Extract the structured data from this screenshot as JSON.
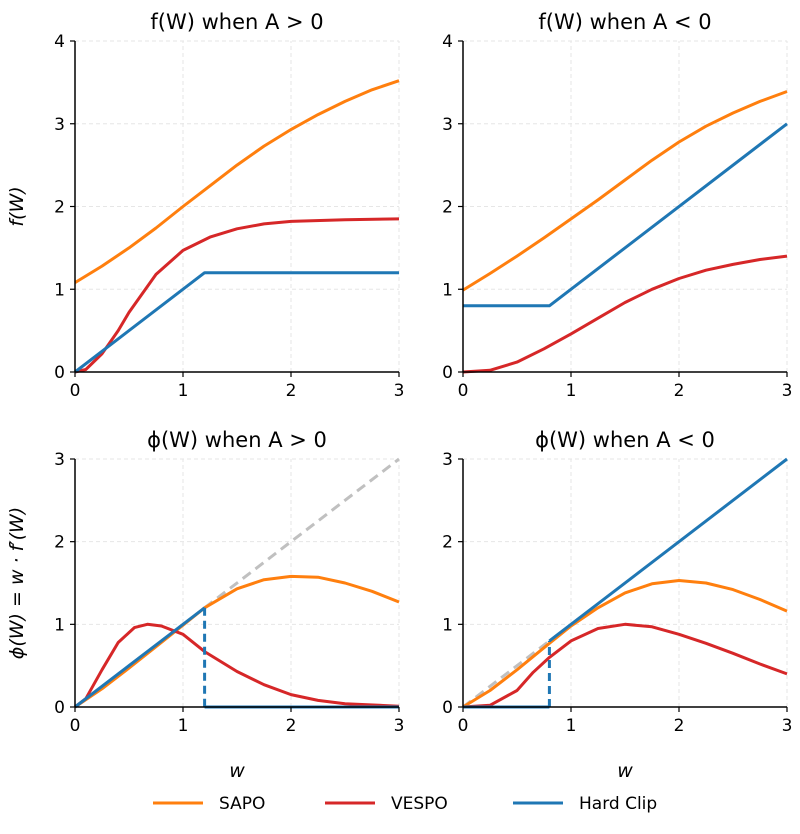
{
  "colors": {
    "SAPO": "#ff7f0e",
    "VESPO": "#d62728",
    "Hard Clip": "#1f77b4",
    "reference": "#c0c0c0"
  },
  "legend": {
    "items": [
      "SAPO",
      "VESPO",
      "Hard Clip"
    ],
    "placement": "bottom-center"
  },
  "chart_data": [
    {
      "type": "line",
      "title": "f(W) when A > 0",
      "xlabel": "",
      "ylabel": "f(W)",
      "xlim": [
        0,
        3
      ],
      "ylim": [
        0,
        4
      ],
      "xticks": [
        "0",
        "1",
        "2",
        "3"
      ],
      "yticks": [
        "0",
        "1",
        "2",
        "3",
        "4"
      ],
      "grid": true,
      "series": [
        {
          "name": "SAPO",
          "points": [
            [
              0,
              1.08
            ],
            [
              0.25,
              1.28
            ],
            [
              0.5,
              1.5
            ],
            [
              0.75,
              1.74
            ],
            [
              1,
              2.0
            ],
            [
              1.25,
              2.25
            ],
            [
              1.5,
              2.5
            ],
            [
              1.75,
              2.73
            ],
            [
              2,
              2.93
            ],
            [
              2.25,
              3.11
            ],
            [
              2.5,
              3.27
            ],
            [
              2.75,
              3.41
            ],
            [
              3,
              3.52
            ]
          ]
        },
        {
          "name": "VESPO",
          "points": [
            [
              0,
              0
            ],
            [
              0.1,
              0.03
            ],
            [
              0.25,
              0.22
            ],
            [
              0.4,
              0.5
            ],
            [
              0.5,
              0.72
            ],
            [
              0.75,
              1.18
            ],
            [
              1,
              1.47
            ],
            [
              1.25,
              1.63
            ],
            [
              1.5,
              1.73
            ],
            [
              1.75,
              1.79
            ],
            [
              2,
              1.82
            ],
            [
              2.5,
              1.84
            ],
            [
              3,
              1.85
            ]
          ]
        },
        {
          "name": "Hard Clip",
          "points": [
            [
              0,
              0
            ],
            [
              1.2,
              1.2
            ],
            [
              3,
              1.2
            ]
          ]
        }
      ]
    },
    {
      "type": "line",
      "title": "f(W) when A < 0",
      "xlabel": "",
      "ylabel": "",
      "xlim": [
        0,
        3
      ],
      "ylim": [
        0,
        4
      ],
      "xticks": [
        "0",
        "1",
        "2",
        "3"
      ],
      "yticks": [
        "0",
        "1",
        "2",
        "3",
        "4"
      ],
      "grid": true,
      "series": [
        {
          "name": "SAPO",
          "points": [
            [
              0,
              0.99
            ],
            [
              0.25,
              1.19
            ],
            [
              0.5,
              1.4
            ],
            [
              0.75,
              1.62
            ],
            [
              1,
              1.85
            ],
            [
              1.25,
              2.08
            ],
            [
              1.5,
              2.32
            ],
            [
              1.75,
              2.56
            ],
            [
              2,
              2.78
            ],
            [
              2.25,
              2.97
            ],
            [
              2.5,
              3.13
            ],
            [
              2.75,
              3.27
            ],
            [
              3,
              3.39
            ]
          ]
        },
        {
          "name": "VESPO",
          "points": [
            [
              0,
              0
            ],
            [
              0.25,
              0.02
            ],
            [
              0.5,
              0.12
            ],
            [
              0.75,
              0.28
            ],
            [
              1,
              0.46
            ],
            [
              1.25,
              0.65
            ],
            [
              1.5,
              0.84
            ],
            [
              1.75,
              1.0
            ],
            [
              2,
              1.13
            ],
            [
              2.25,
              1.23
            ],
            [
              2.5,
              1.3
            ],
            [
              2.75,
              1.36
            ],
            [
              3,
              1.4
            ]
          ]
        },
        {
          "name": "Hard Clip",
          "points": [
            [
              0,
              0.8
            ],
            [
              0.8,
              0.8
            ],
            [
              3,
              3
            ]
          ]
        }
      ]
    },
    {
      "type": "line",
      "title": "ϕ(W) when A > 0",
      "xlabel": "w",
      "ylabel": "ϕ(W) = w · f′(W)",
      "xlim": [
        0,
        3
      ],
      "ylim": [
        0,
        3
      ],
      "xticks": [
        "0",
        "1",
        "2",
        "3"
      ],
      "yticks": [
        "0",
        "1",
        "2",
        "3"
      ],
      "grid": true,
      "series": [
        {
          "name": "reference",
          "dashed": true,
          "points": [
            [
              1.2,
              1.2
            ],
            [
              3,
              3
            ]
          ]
        },
        {
          "name": "SAPO",
          "points": [
            [
              0,
              0
            ],
            [
              0.25,
              0.22
            ],
            [
              0.5,
              0.47
            ],
            [
              0.75,
              0.73
            ],
            [
              1,
              0.99
            ],
            [
              1.2,
              1.2
            ],
            [
              1.5,
              1.43
            ],
            [
              1.75,
              1.54
            ],
            [
              2,
              1.58
            ],
            [
              2.25,
              1.57
            ],
            [
              2.5,
              1.5
            ],
            [
              2.75,
              1.4
            ],
            [
              3,
              1.27
            ]
          ]
        },
        {
          "name": "VESPO",
          "points": [
            [
              0,
              0
            ],
            [
              0.1,
              0.1
            ],
            [
              0.25,
              0.45
            ],
            [
              0.4,
              0.78
            ],
            [
              0.55,
              0.96
            ],
            [
              0.67,
              1.0
            ],
            [
              0.8,
              0.98
            ],
            [
              1,
              0.88
            ],
            [
              1.2,
              0.67
            ],
            [
              1.5,
              0.43
            ],
            [
              1.75,
              0.27
            ],
            [
              2,
              0.15
            ],
            [
              2.25,
              0.08
            ],
            [
              2.5,
              0.04
            ],
            [
              3,
              0.01
            ]
          ]
        },
        {
          "name": "Hard Clip",
          "points": [
            [
              0,
              0
            ],
            [
              1.2,
              1.2
            ]
          ]
        },
        {
          "name": "Hard Clip",
          "dashed": true,
          "points": [
            [
              1.2,
              1.2
            ],
            [
              1.2,
              0
            ]
          ]
        },
        {
          "name": "Hard Clip",
          "points": [
            [
              1.2,
              0
            ],
            [
              3,
              0
            ]
          ]
        }
      ]
    },
    {
      "type": "line",
      "title": "ϕ(W) when A < 0",
      "xlabel": "w",
      "ylabel": "",
      "xlim": [
        0,
        3
      ],
      "ylim": [
        0,
        3
      ],
      "xticks": [
        "0",
        "1",
        "2",
        "3"
      ],
      "yticks": [
        "0",
        "1",
        "2",
        "3"
      ],
      "grid": true,
      "series": [
        {
          "name": "reference",
          "dashed": true,
          "points": [
            [
              0,
              0
            ],
            [
              0.8,
              0.8
            ]
          ]
        },
        {
          "name": "SAPO",
          "points": [
            [
              0,
              0
            ],
            [
              0.25,
              0.2
            ],
            [
              0.5,
              0.45
            ],
            [
              0.8,
              0.77
            ],
            [
              1,
              0.98
            ],
            [
              1.25,
              1.2
            ],
            [
              1.5,
              1.38
            ],
            [
              1.75,
              1.49
            ],
            [
              2,
              1.53
            ],
            [
              2.25,
              1.5
            ],
            [
              2.5,
              1.42
            ],
            [
              2.75,
              1.3
            ],
            [
              3,
              1.16
            ]
          ]
        },
        {
          "name": "VESPO",
          "points": [
            [
              0,
              0
            ],
            [
              0.25,
              0.02
            ],
            [
              0.5,
              0.2
            ],
            [
              0.65,
              0.42
            ],
            [
              0.8,
              0.6
            ],
            [
              1,
              0.8
            ],
            [
              1.25,
              0.95
            ],
            [
              1.5,
              1.0
            ],
            [
              1.75,
              0.97
            ],
            [
              2,
              0.88
            ],
            [
              2.25,
              0.77
            ],
            [
              2.5,
              0.65
            ],
            [
              2.75,
              0.52
            ],
            [
              3,
              0.4
            ]
          ]
        },
        {
          "name": "Hard Clip",
          "points": [
            [
              0,
              0
            ],
            [
              0.8,
              0
            ]
          ]
        },
        {
          "name": "Hard Clip",
          "dashed": true,
          "points": [
            [
              0.8,
              0
            ],
            [
              0.8,
              0.8
            ]
          ]
        },
        {
          "name": "Hard Clip",
          "points": [
            [
              0.8,
              0.8
            ],
            [
              3,
              3
            ]
          ]
        }
      ]
    }
  ]
}
